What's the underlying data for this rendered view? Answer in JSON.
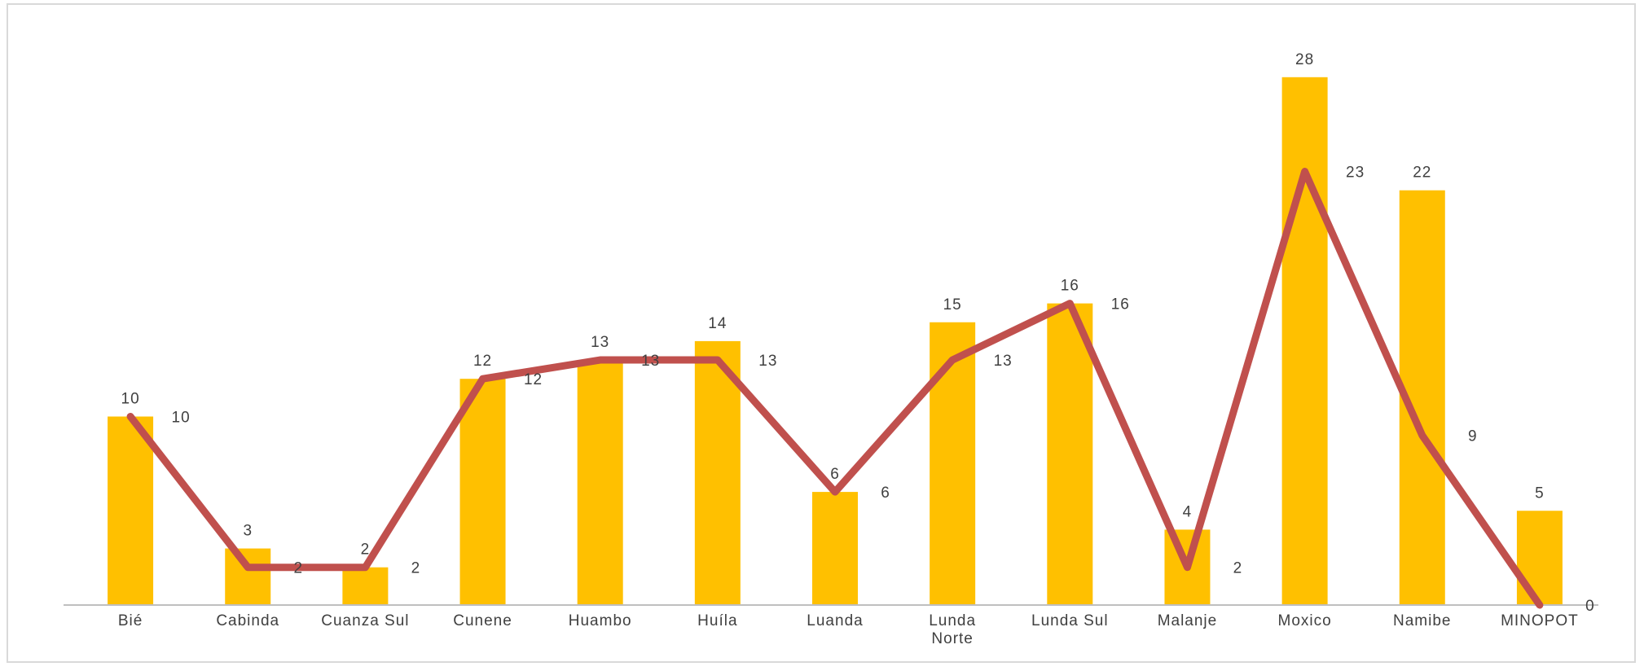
{
  "chart_data": {
    "type": "bar",
    "categories": [
      "Bié",
      "Cabinda",
      "Cuanza Sul",
      "Cunene",
      "Huambo",
      "Huíla",
      "Luanda",
      "Lunda Norte",
      "Lunda Sul",
      "Malanje",
      "Moxico",
      "Namibe",
      "MINOPOT"
    ],
    "category_lines": [
      [
        "Bié"
      ],
      [
        "Cabinda"
      ],
      [
        "Cuanza Sul"
      ],
      [
        "Cunene"
      ],
      [
        "Huambo"
      ],
      [
        "Huíla"
      ],
      [
        "Luanda"
      ],
      [
        "Lunda",
        "Norte"
      ],
      [
        "Lunda Sul"
      ],
      [
        "Malanje"
      ],
      [
        "Moxico"
      ],
      [
        "Namibe"
      ],
      [
        "MINOPOT"
      ]
    ],
    "series": [
      {
        "type": "bar",
        "color": "#FFC000",
        "values": [
          10,
          3,
          2,
          12,
          13,
          14,
          6,
          15,
          16,
          4,
          28,
          22,
          5
        ]
      },
      {
        "type": "line",
        "color": "#C0504D",
        "values": [
          10,
          2,
          2,
          12,
          13,
          13,
          6,
          13,
          16,
          2,
          23,
          9,
          0
        ]
      }
    ],
    "ylim": [
      0,
      30
    ],
    "grid": false,
    "legend": "none",
    "title": "",
    "xlabel": "",
    "ylabel": ""
  }
}
